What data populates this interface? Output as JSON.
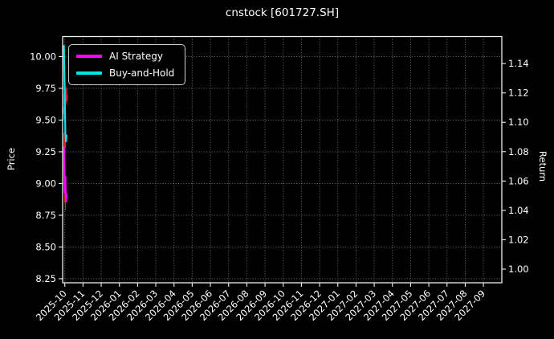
{
  "chart_data": {
    "type": "line",
    "overlay": "candlestick",
    "title": "cnstock [601727.SH]",
    "background_color": "#000000",
    "text_color": "#ffffff",
    "grid": true,
    "x": {
      "tick_rotation_deg": -45,
      "tick_labels": [
        "2025-10",
        "2025-11",
        "2025-12",
        "2026-01",
        "2026-02",
        "2026-03",
        "2026-04",
        "2026-05",
        "2026-06",
        "2026-07",
        "2026-08",
        "2026-09",
        "2026-10",
        "2026-11",
        "2026-12",
        "2027-01",
        "2027-02",
        "2027-03",
        "2027-04",
        "2027-05",
        "2027-06",
        "2027-07",
        "2027-08",
        "2027-09"
      ]
    },
    "y_left": {
      "label": "Price",
      "ticks": [
        8.25,
        8.5,
        8.75,
        9.0,
        9.25,
        9.5,
        9.75,
        10.0
      ],
      "lim": [
        8.218,
        10.158
      ]
    },
    "y_right": {
      "label": "Return",
      "ticks": [
        1.0,
        1.02,
        1.04,
        1.06,
        1.08,
        1.1,
        1.12,
        1.14
      ],
      "lim": [
        0.9907,
        1.1584
      ]
    },
    "legend": {
      "location": "upper left"
    },
    "dates": [
      "2025-09-30",
      "2025-10-01",
      "2025-10-02",
      "2025-10-03",
      "2025-10-04"
    ],
    "series": [
      {
        "name": "AI Strategy",
        "color": "#ff00ff",
        "axis": "right",
        "values": [
          1.083,
          1.052,
          1.063,
          1.046,
          1.051
        ]
      },
      {
        "name": "Buy-and-Hold",
        "color": "#00e6e6",
        "axis": "right",
        "values": [
          1.152,
          1.118,
          1.093,
          1.087,
          1.091
        ]
      }
    ],
    "candles": {
      "up_color": "#2e8b57",
      "down_color": "#cc2a2a",
      "data": [
        {
          "date": "2025-09-30",
          "open": 9.6,
          "high": 9.7,
          "low": 9.5,
          "close": 9.55
        },
        {
          "date": "2025-10-01",
          "open": 9.4,
          "high": 9.42,
          "low": 9.24,
          "close": 9.28
        },
        {
          "date": "2025-10-02",
          "open": 8.95,
          "high": 9.0,
          "low": 8.79,
          "close": 8.85
        },
        {
          "date": "2025-10-03",
          "open": 9.75,
          "high": 9.77,
          "low": 9.64,
          "close": 9.66
        },
        {
          "date": "2025-10-04",
          "open": 9.7,
          "high": 9.72,
          "low": 9.62,
          "close": 9.65
        }
      ]
    }
  }
}
